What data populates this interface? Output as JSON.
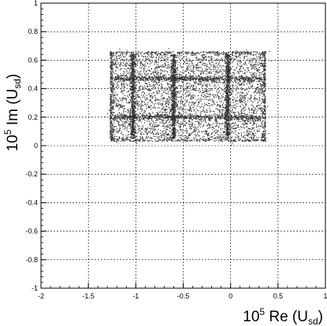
{
  "chart_data": {
    "type": "scatter",
    "title": "",
    "xlabel": {
      "prefix": "10",
      "exp": "5",
      "main": " Re (U",
      "sub": "sd",
      "close": ")"
    },
    "ylabel": {
      "prefix": "10",
      "exp": "5",
      "main": " Im (U",
      "sub": "sd",
      "close": ")"
    },
    "xlim": [
      -2,
      1
    ],
    "ylim": [
      -1,
      1
    ],
    "grid": true,
    "legend": "none",
    "x_ticks": [
      {
        "value": -2,
        "label": "-2"
      },
      {
        "value": -1.5,
        "label": "-1.5"
      },
      {
        "value": -1,
        "label": "-1"
      },
      {
        "value": -0.5,
        "label": "-0.5"
      },
      {
        "value": 0,
        "label": "0"
      },
      {
        "value": 0.5,
        "label": "0.5"
      },
      {
        "value": 1,
        "label": "1"
      }
    ],
    "y_ticks": [
      {
        "value": 1,
        "label": "1"
      },
      {
        "value": 0.8,
        "label": "0.8"
      },
      {
        "value": 0.6,
        "label": "0.6"
      },
      {
        "value": 0.4,
        "label": "0.4"
      },
      {
        "value": 0.2,
        "label": "0.2"
      },
      {
        "value": 0,
        "label": "0"
      },
      {
        "value": -0.2,
        "label": "-0.2"
      },
      {
        "value": -0.4,
        "label": "-0.4"
      },
      {
        "value": -0.6,
        "label": "-0.6"
      },
      {
        "value": -0.8,
        "label": "-0.8"
      },
      {
        "value": -1,
        "label": "-1"
      }
    ],
    "series": [
      {
        "color": "#333333",
        "region": {
          "x_min": -1.27,
          "x_max": 0.37,
          "y_min": 0.03,
          "y_max": 0.66
        },
        "dense_columns_x": [
          -1.03,
          -0.6,
          -0.03
        ],
        "dense_rows_y": [
          0.47,
          0.2
        ],
        "point_density": "high"
      }
    ]
  }
}
